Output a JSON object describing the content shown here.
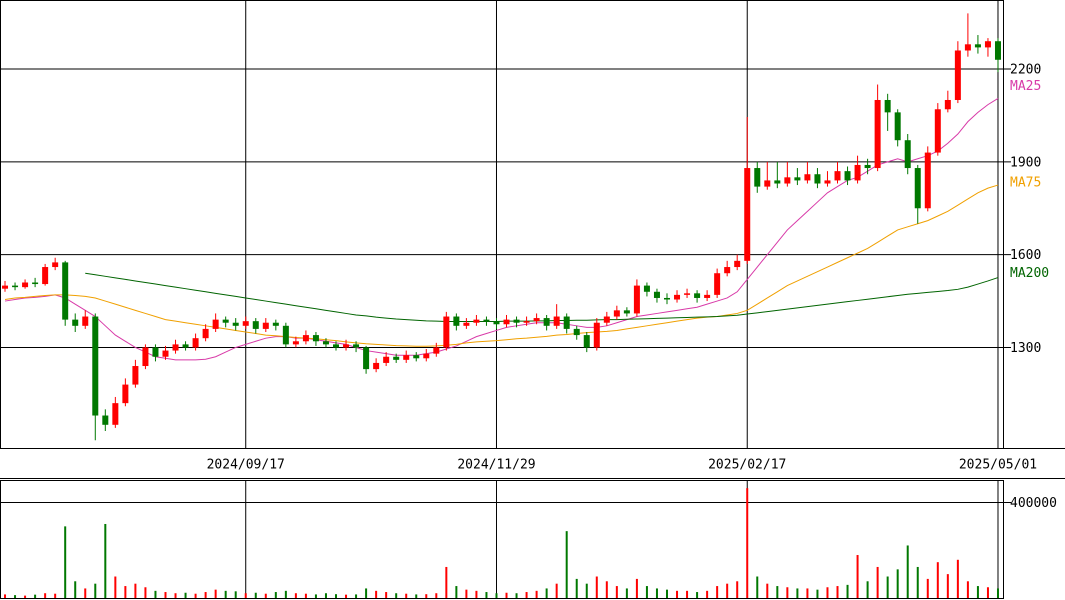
{
  "chart_data": [
    {
      "type": "candlestick",
      "categories": [
        null,
        null,
        null,
        null,
        null,
        null,
        null,
        null,
        null,
        null,
        null,
        null,
        null,
        null,
        null,
        null,
        null,
        null,
        null,
        null,
        null,
        null,
        null,
        null,
        "2024/09/17",
        null,
        null,
        null,
        null,
        null,
        null,
        null,
        null,
        null,
        null,
        null,
        null,
        null,
        null,
        null,
        null,
        null,
        null,
        null,
        null,
        null,
        null,
        null,
        null,
        "2024/11/29",
        null,
        null,
        null,
        null,
        null,
        null,
        null,
        null,
        null,
        null,
        null,
        null,
        null,
        null,
        null,
        null,
        null,
        null,
        null,
        null,
        null,
        null,
        null,
        null,
        "2025/02/17",
        null,
        null,
        null,
        null,
        null,
        null,
        null,
        null,
        null,
        null,
        null,
        null,
        null,
        null,
        null,
        null,
        null,
        null,
        null,
        null,
        null,
        null,
        null,
        null,
        "2025/05/01"
      ],
      "open": [
        1490,
        1500,
        1495,
        1510,
        1505,
        1560,
        1575,
        1390,
        1370,
        1400,
        1080,
        1050,
        1120,
        1180,
        1240,
        1300,
        1270,
        1290,
        1310,
        1300,
        1330,
        1360,
        1390,
        1380,
        1370,
        1385,
        1360,
        1380,
        1370,
        1310,
        1320,
        1340,
        1320,
        1310,
        1300,
        1310,
        1300,
        1230,
        1250,
        1270,
        1260,
        1275,
        1265,
        1280,
        1300,
        1400,
        1370,
        1380,
        1390,
        1385,
        1375,
        1390,
        1380,
        1385,
        1395,
        1370,
        1400,
        1360,
        1340,
        1300,
        1380,
        1400,
        1420,
        1410,
        1500,
        1480,
        1460,
        1455,
        1470,
        1475,
        1460,
        1470,
        1540,
        1560,
        1580,
        1880,
        1820,
        1840,
        1830,
        1850,
        1840,
        1860,
        1830,
        1840,
        1870,
        1840,
        1890,
        1880,
        2100,
        2060,
        1970,
        1880,
        1750,
        1930,
        2070,
        2100,
        2260,
        2280,
        2270,
        2290
      ],
      "high": [
        1515,
        1510,
        1520,
        1525,
        1570,
        1590,
        1580,
        1410,
        1420,
        1410,
        1100,
        1140,
        1200,
        1260,
        1310,
        1310,
        1305,
        1325,
        1320,
        1345,
        1375,
        1410,
        1400,
        1395,
        1400,
        1395,
        1395,
        1390,
        1380,
        1335,
        1355,
        1350,
        1330,
        1320,
        1325,
        1320,
        1305,
        1265,
        1285,
        1280,
        1290,
        1285,
        1295,
        1315,
        1415,
        1410,
        1395,
        1405,
        1400,
        1395,
        1405,
        1400,
        1400,
        1410,
        1405,
        1440,
        1410,
        1370,
        1350,
        1395,
        1415,
        1435,
        1430,
        1520,
        1510,
        1490,
        1475,
        1485,
        1490,
        1485,
        1485,
        1555,
        1580,
        1600,
        2045,
        1900,
        1900,
        1900,
        1900,
        1880,
        1900,
        1880,
        1870,
        1900,
        1885,
        1920,
        1910,
        2150,
        2120,
        2070,
        1990,
        1890,
        1950,
        2090,
        2130,
        2290,
        2380,
        2310,
        2300,
        2300
      ],
      "low": [
        1480,
        1485,
        1490,
        1495,
        1500,
        1550,
        1370,
        1350,
        1360,
        1000,
        1030,
        1040,
        1110,
        1170,
        1230,
        1255,
        1260,
        1280,
        1290,
        1290,
        1320,
        1350,
        1365,
        1355,
        1360,
        1345,
        1350,
        1355,
        1300,
        1300,
        1310,
        1305,
        1300,
        1290,
        1290,
        1285,
        1215,
        1220,
        1240,
        1250,
        1250,
        1255,
        1255,
        1270,
        1290,
        1355,
        1360,
        1370,
        1370,
        1360,
        1365,
        1365,
        1370,
        1375,
        1355,
        1360,
        1345,
        1325,
        1285,
        1290,
        1370,
        1390,
        1400,
        1400,
        1465,
        1445,
        1440,
        1445,
        1460,
        1445,
        1450,
        1460,
        1530,
        1550,
        1570,
        1800,
        1810,
        1815,
        1820,
        1825,
        1830,
        1815,
        1820,
        1830,
        1825,
        1830,
        1860,
        1870,
        2000,
        1950,
        1860,
        1700,
        1740,
        1920,
        2060,
        2090,
        2240,
        2250,
        2240,
        2190
      ],
      "close": [
        1500,
        1495,
        1510,
        1505,
        1560,
        1575,
        1390,
        1370,
        1400,
        1080,
        1050,
        1120,
        1180,
        1240,
        1300,
        1270,
        1290,
        1310,
        1300,
        1330,
        1360,
        1390,
        1380,
        1370,
        1385,
        1360,
        1380,
        1370,
        1310,
        1320,
        1340,
        1320,
        1310,
        1300,
        1310,
        1300,
        1230,
        1250,
        1270,
        1260,
        1275,
        1265,
        1280,
        1300,
        1400,
        1370,
        1380,
        1390,
        1385,
        1375,
        1390,
        1380,
        1385,
        1395,
        1370,
        1400,
        1360,
        1340,
        1300,
        1380,
        1400,
        1420,
        1410,
        1500,
        1480,
        1460,
        1455,
        1470,
        1475,
        1460,
        1470,
        1540,
        1560,
        1580,
        1880,
        1820,
        1840,
        1830,
        1850,
        1840,
        1860,
        1830,
        1840,
        1870,
        1840,
        1890,
        1880,
        2100,
        2060,
        1970,
        1880,
        1750,
        1930,
        2070,
        2100,
        2260,
        2280,
        2270,
        2290,
        2230
      ],
      "up_color": "#ff0000",
      "down_color": "#007800",
      "ylim": [
        975,
        2420
      ],
      "yticks": [
        1300,
        1600,
        1900,
        2200
      ],
      "series": [
        {
          "name": "MA25",
          "color": "#d83aa8",
          "values": [
            1450,
            1455,
            1460,
            1462,
            1465,
            1470,
            1460,
            1440,
            1420,
            1400,
            1370,
            1340,
            1320,
            1300,
            1285,
            1270,
            1265,
            1260,
            1260,
            1260,
            1262,
            1270,
            1285,
            1300,
            1310,
            1320,
            1330,
            1335,
            1335,
            1330,
            1330,
            1325,
            1320,
            1315,
            1310,
            1300,
            1290,
            1285,
            1280,
            1275,
            1275,
            1275,
            1280,
            1285,
            1295,
            1305,
            1320,
            1335,
            1345,
            1355,
            1365,
            1370,
            1375,
            1380,
            1380,
            1380,
            1375,
            1370,
            1365,
            1365,
            1370,
            1380,
            1390,
            1400,
            1405,
            1410,
            1415,
            1420,
            1425,
            1430,
            1440,
            1450,
            1460,
            1480,
            1520,
            1560,
            1600,
            1640,
            1680,
            1710,
            1740,
            1770,
            1800,
            1820,
            1840,
            1850,
            1870,
            1890,
            1900,
            1910,
            1900,
            1910,
            1920,
            1935,
            1960,
            1990,
            2030,
            2060,
            2085,
            2105
          ]
        },
        {
          "name": "MA75",
          "color": "#f0a000",
          "values": [
            1455,
            1460,
            1462,
            1465,
            1468,
            1470,
            1470,
            1468,
            1465,
            1460,
            1450,
            1440,
            1430,
            1420,
            1410,
            1400,
            1390,
            1385,
            1380,
            1375,
            1370,
            1365,
            1360,
            1355,
            1350,
            1345,
            1340,
            1338,
            1335,
            1332,
            1330,
            1328,
            1325,
            1322,
            1318,
            1315,
            1312,
            1310,
            1308,
            1306,
            1305,
            1304,
            1304,
            1305,
            1307,
            1310,
            1315,
            1318,
            1320,
            1322,
            1325,
            1328,
            1330,
            1333,
            1336,
            1340,
            1342,
            1345,
            1348,
            1350,
            1352,
            1355,
            1360,
            1365,
            1370,
            1375,
            1380,
            1385,
            1390,
            1395,
            1398,
            1400,
            1405,
            1410,
            1420,
            1440,
            1460,
            1480,
            1500,
            1515,
            1530,
            1545,
            1560,
            1575,
            1590,
            1605,
            1620,
            1640,
            1660,
            1680,
            1690,
            1700,
            1710,
            1725,
            1740,
            1760,
            1780,
            1800,
            1815,
            1825
          ]
        },
        {
          "name": "MA200",
          "color": "#006400",
          "values": [
            null,
            null,
            null,
            null,
            null,
            null,
            null,
            null,
            1540,
            1535,
            1530,
            1525,
            1520,
            1515,
            1510,
            1505,
            1500,
            1495,
            1490,
            1485,
            1480,
            1475,
            1470,
            1465,
            1460,
            1455,
            1450,
            1445,
            1440,
            1435,
            1430,
            1425,
            1420,
            1415,
            1410,
            1405,
            1402,
            1398,
            1395,
            1392,
            1390,
            1388,
            1386,
            1385,
            1384,
            1384,
            1384,
            1384,
            1384,
            1384,
            1385,
            1385,
            1385,
            1386,
            1386,
            1387,
            1387,
            1388,
            1388,
            1389,
            1390,
            1390,
            1391,
            1392,
            1393,
            1394,
            1395,
            1396,
            1397,
            1398,
            1399,
            1400,
            1402,
            1404,
            1408,
            1412,
            1416,
            1420,
            1424,
            1428,
            1432,
            1436,
            1440,
            1444,
            1448,
            1452,
            1456,
            1460,
            1464,
            1468,
            1472,
            1475,
            1478,
            1481,
            1484,
            1488,
            1495,
            1505,
            1515,
            1526
          ]
        }
      ]
    },
    {
      "type": "bar",
      "values": [
        15000,
        12000,
        10000,
        14000,
        20000,
        18000,
        300000,
        70000,
        40000,
        60000,
        310000,
        90000,
        50000,
        60000,
        45000,
        30000,
        25000,
        20000,
        22000,
        18000,
        25000,
        35000,
        30000,
        28000,
        20000,
        22000,
        18000,
        25000,
        30000,
        20000,
        18000,
        15000,
        20000,
        16000,
        14000,
        15000,
        40000,
        30000,
        25000,
        20000,
        18000,
        15000,
        16000,
        20000,
        130000,
        50000,
        35000,
        30000,
        25000,
        20000,
        22000,
        20000,
        25000,
        30000,
        40000,
        60000,
        280000,
        80000,
        60000,
        90000,
        70000,
        50000,
        40000,
        80000,
        50000,
        40000,
        35000,
        30000,
        30000,
        25000,
        30000,
        50000,
        60000,
        70000,
        460000,
        90000,
        60000,
        50000,
        45000,
        40000,
        40000,
        35000,
        45000,
        50000,
        55000,
        180000,
        70000,
        130000,
        90000,
        120000,
        220000,
        130000,
        80000,
        150000,
        100000,
        160000,
        70000,
        50000,
        45000,
        40000
      ],
      "ylim": [
        0,
        490000
      ],
      "yticks": [
        400000
      ]
    }
  ]
}
